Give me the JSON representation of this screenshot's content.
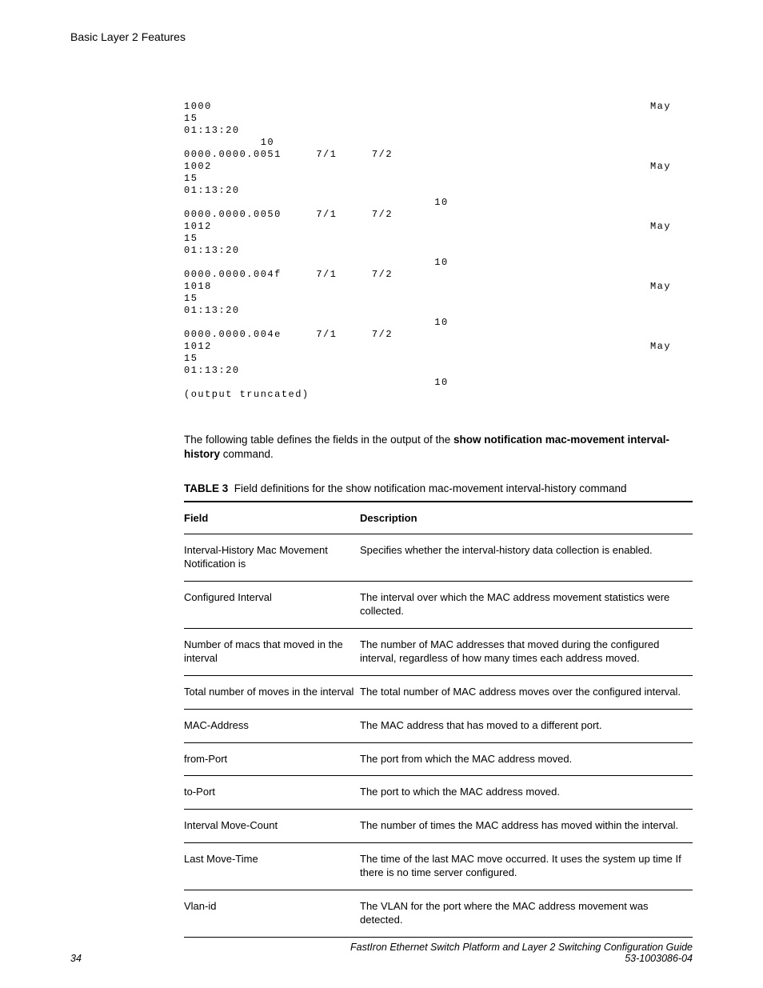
{
  "header": {
    "title": "Basic Layer 2 Features"
  },
  "code": {
    "text": "1000                                                               May\n15\n01:13:20\n           10\n0000.0000.0051     7/1     7/2\n1002                                                               May\n15\n01:13:20\n                                    10\n0000.0000.0050     7/1     7/2\n1012                                                               May\n15\n01:13:20\n                                    10\n0000.0000.004f     7/1     7/2\n1018                                                               May\n15\n01:13:20\n                                    10\n0000.0000.004e     7/1     7/2\n1012                                                               May\n15\n01:13:20\n                                    10\n(output truncated)"
  },
  "paragraph": {
    "pre": "The following table defines the fields in the output of the ",
    "bold": "show notification mac-movement interval-history",
    "post": " command."
  },
  "table": {
    "label": "TABLE 3",
    "caption": "Field definitions for the show notification mac-movement interval-history command",
    "columns": {
      "field": "Field",
      "description": "Description"
    },
    "rows": [
      {
        "field": "Interval-History Mac Movement Notification is",
        "description": "Specifies whether the interval-history data collection is enabled."
      },
      {
        "field": "Configured Interval",
        "description": "The interval over which the MAC address movement statistics were collected."
      },
      {
        "field": "Number of macs that moved in the interval",
        "description": "The number of MAC addresses that moved during the configured interval, regardless of how many times each address moved."
      },
      {
        "field": "Total number of moves in the interval",
        "description": "The total number of MAC address moves over the configured interval."
      },
      {
        "field": "MAC-Address",
        "description": "The MAC address that has moved to a different port."
      },
      {
        "field": "from-Port",
        "description": "The port from which the MAC address moved."
      },
      {
        "field": "to-Port",
        "description": "The port to which the MAC address moved."
      },
      {
        "field": "Interval Move-Count",
        "description": "The number of times the MAC address has moved within the interval."
      },
      {
        "field": "Last Move-Time",
        "description": "The time of the last MAC move occurred. It uses the system up time If there is no time server configured."
      },
      {
        "field": "Vlan-id",
        "description": "The VLAN for the port where the MAC address movement was detected."
      }
    ]
  },
  "footer": {
    "page": "34",
    "title": "FastIron Ethernet Switch Platform and Layer 2 Switching Configuration Guide",
    "docnum": "53-1003086-04"
  }
}
